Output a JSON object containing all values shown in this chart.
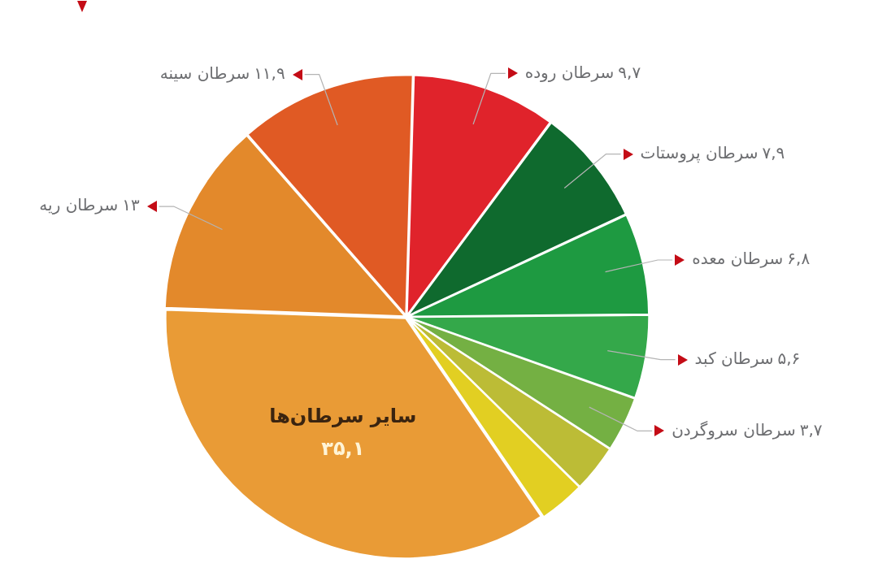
{
  "chart_data": {
    "type": "pie",
    "categories": [
      "سرطان ریه",
      "سرطان سینه",
      "سرطان روده",
      "سرطان پروستات",
      "سرطان معده",
      "سرطان کبد",
      "سرطان سروگردن",
      null,
      null,
      "سایر سرطان‌ها"
    ],
    "values": [
      13,
      11.9,
      9.7,
      7.9,
      6.8,
      5.6,
      3.7,
      3.2,
      3.1,
      35.1
    ],
    "value_labels": [
      "۱۳",
      "۱۱,۹",
      "۹,۷",
      "۷,۹",
      "۶,۸",
      "۵,۶",
      "۳,۷",
      null,
      null,
      "۳۵,۱"
    ],
    "colors": [
      "#e3892b",
      "#e05a24",
      "#e0232b",
      "#0f6a2e",
      "#1e9a41",
      "#34a84a",
      "#74b043",
      "#bcbc36",
      "#e2cf22",
      "#e99b36"
    ]
  }
}
